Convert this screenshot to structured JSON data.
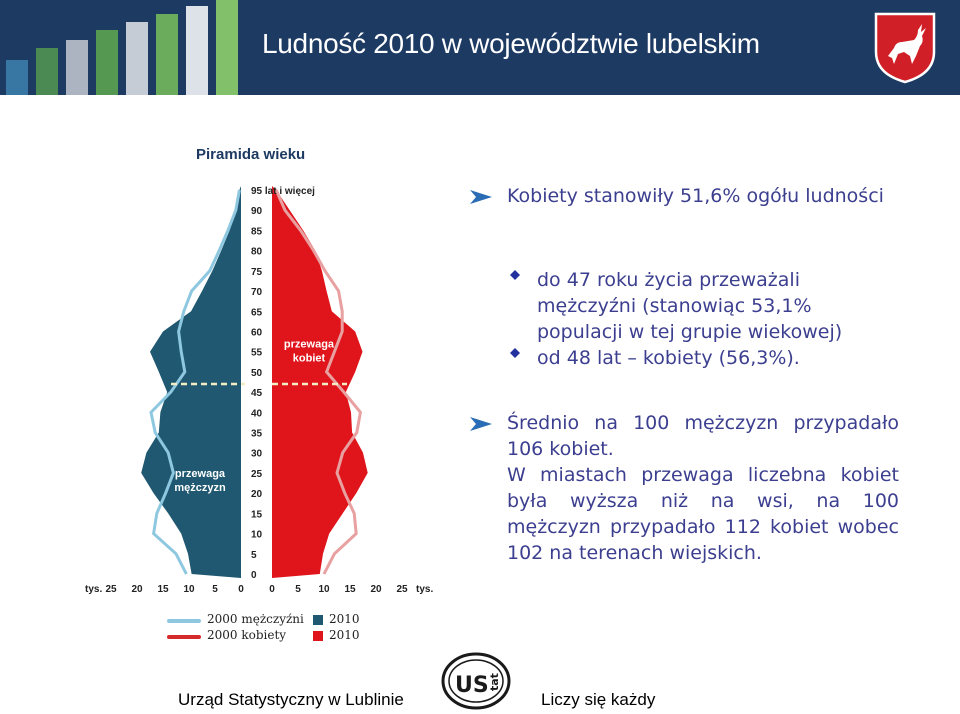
{
  "header": {
    "title": "Ludność 2010 w województwie lubelskim",
    "crest_icon": "lublin-goat-crest-icon",
    "bg_color": "#1d3a63"
  },
  "chart_data": {
    "type": "population-pyramid",
    "title": "Piramida wieku",
    "y_ticks": [
      "95 lat i więcej",
      "90",
      "85",
      "80",
      "75",
      "70",
      "65",
      "60",
      "55",
      "50",
      "45",
      "40",
      "35",
      "30",
      "25",
      "20",
      "15",
      "10",
      "5",
      "0"
    ],
    "x_unit_left": "tys.",
    "x_unit_right": "tys.",
    "x_ticks_left": [
      "25",
      "20",
      "15",
      "10",
      "5",
      "0"
    ],
    "x_ticks_right": [
      "0",
      "5",
      "10",
      "15",
      "20",
      "25"
    ],
    "xlim": [
      0,
      25
    ],
    "ages": [
      0,
      5,
      10,
      15,
      20,
      25,
      30,
      35,
      40,
      45,
      50,
      55,
      60,
      65,
      70,
      75,
      80,
      85,
      90,
      95
    ],
    "series": [
      {
        "name": "2010",
        "side": "male",
        "color": "#1f5870",
        "values": [
          9.5,
          10.2,
          11.5,
          14.0,
          16.8,
          19.2,
          18.2,
          15.8,
          15.5,
          14.2,
          15.8,
          17.5,
          15.0,
          9.6,
          7.5,
          5.5,
          3.8,
          2.2,
          1.0,
          0.3
        ]
      },
      {
        "name": "2010",
        "side": "female",
        "color": "#e0141b",
        "values": [
          9.2,
          9.8,
          11.0,
          13.6,
          16.2,
          18.4,
          17.5,
          15.4,
          15.2,
          14.2,
          16.0,
          17.4,
          16.0,
          11.5,
          10.5,
          9.6,
          8.3,
          6.0,
          3.4,
          0.8
        ]
      },
      {
        "name": "2000",
        "side": "male",
        "color": "#8ec8e0",
        "values": [
          10.5,
          12.5,
          16.8,
          16.2,
          14.5,
          13.0,
          14.0,
          16.5,
          17.3,
          13.5,
          10.8,
          11.5,
          12.0,
          11.0,
          9.5,
          6.0,
          4.2,
          2.5,
          1.0,
          0.3
        ]
      },
      {
        "name": "2000",
        "side": "female",
        "color": "#d42a2a",
        "values": [
          10.0,
          12.0,
          16.2,
          15.8,
          14.0,
          12.5,
          13.6,
          16.3,
          17.0,
          13.8,
          10.5,
          12.0,
          13.5,
          13.5,
          12.8,
          10.2,
          8.0,
          5.5,
          2.5,
          0.8
        ]
      }
    ],
    "annotations": [
      {
        "text": "przewaga kobiet",
        "age": 55
      },
      {
        "text": "przewaga mężczyzn",
        "age": 25
      }
    ],
    "divider_age": 47,
    "legend": [
      {
        "line_color": "#8ec8e0",
        "label": "2000  mężczyźni",
        "swatch_color": "#1f5870",
        "year": "2010"
      },
      {
        "line_color": "#d42a2a",
        "label": "2000  kobiety",
        "swatch_color": "#e0141b",
        "year": "2010"
      }
    ]
  },
  "bullets": {
    "b1": "Kobiety stanowiły 51,6% ogółu ludności",
    "b1a": "do 47 roku życia przeważali mężczyźni (stanowiąc 53,1% populacji w tej grupie wiekowej)",
    "b1b": "od 48 lat – kobiety (56,3%).",
    "b2": "Średnio na 100 mężczyzn przypadało 106 kobiet.",
    "b3": "W miastach przewaga liczebna kobiet była wyższa niż na wsi, na 100 mężczyzn przypadało 112 kobiet wobec  102 na terenach wiejskich."
  },
  "footer": {
    "left": "Urząd Statystyczny w Lublinie",
    "right": "Liczy się każdy",
    "logo_text": "US",
    "logo_sub": "tat"
  }
}
